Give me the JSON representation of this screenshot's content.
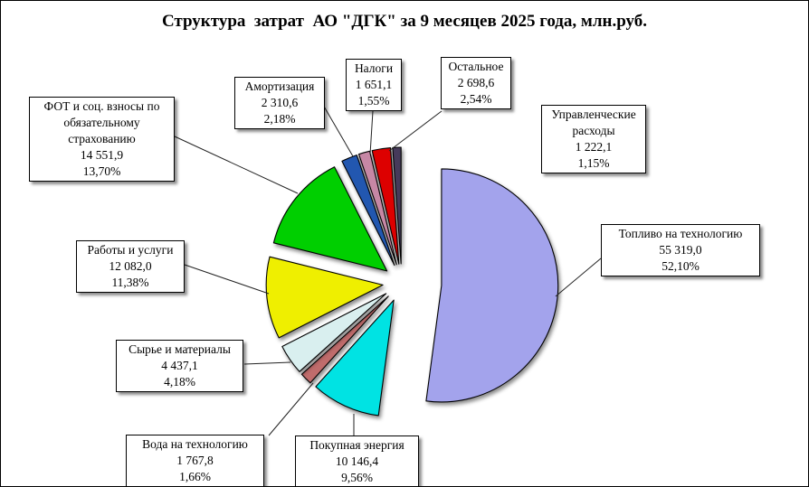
{
  "title": "Структура  затрат  АО \"ДГК\" за 9 месяцев 2025 года, млн.руб.",
  "chart_data": {
    "type": "pie",
    "title": "Структура  затрат  АО \"ДГК\" за 9 месяцев 2025 года, млн.руб.",
    "unit": "млн.руб.",
    "legend_position": "none",
    "exploded": true,
    "start_angle_deg": 0,
    "direction": "clockwise",
    "categories": [
      "Топливо на технологию",
      "Покупная  энергия",
      "Вода  на технологию",
      "Сырье и материалы",
      "Работы и услуги",
      "ФОТ и соц. взносы по обязательному страхованию",
      "Амортизация",
      "Налоги",
      "Остальное",
      "Управленческие расходы"
    ],
    "values": [
      55319.0,
      10146.4,
      1767.8,
      4437.1,
      12082.0,
      14551.9,
      2310.6,
      1651.1,
      2698.6,
      1222.1
    ],
    "percents": [
      52.1,
      9.56,
      1.66,
      4.18,
      11.38,
      13.7,
      2.18,
      1.55,
      2.54,
      1.15
    ],
    "slices": [
      {
        "label": "Топливо на технологию",
        "value": "55 319,0",
        "percent": "52,10%",
        "value_num": 55319.0,
        "percent_num": 52.1,
        "color": "#A3A3EC"
      },
      {
        "label": "Покупная  энергия",
        "value": "10 146,4",
        "percent": "9,56%",
        "value_num": 10146.4,
        "percent_num": 9.56,
        "color": "#00E3E3"
      },
      {
        "label": "Вода  на технологию",
        "value": "1 767,8",
        "percent": "1,66%",
        "value_num": 1767.8,
        "percent_num": 1.66,
        "color": "#C06C6C"
      },
      {
        "label": "Сырье и материалы",
        "value": "4 437,1",
        "percent": "4,18%",
        "value_num": 4437.1,
        "percent_num": 4.18,
        "color": "#D9EFEF"
      },
      {
        "label": "Работы и услуги",
        "value": "12 082,0",
        "percent": "11,38%",
        "value_num": 12082.0,
        "percent_num": 11.38,
        "color": "#EFEF00"
      },
      {
        "label": "ФОТ и соц. взносы по обязательному страхованию",
        "value": "14 551,9",
        "percent": "13,70%",
        "value_num": 14551.9,
        "percent_num": 13.7,
        "color": "#00CF00"
      },
      {
        "label": "Амортизация",
        "value": "2 310,6",
        "percent": "2,18%",
        "value_num": 2310.6,
        "percent_num": 2.18,
        "color": "#2257B0"
      },
      {
        "label": "Налоги",
        "value": "1 651,1",
        "percent": "1,55%",
        "value_num": 1651.1,
        "percent_num": 1.55,
        "color": "#C687A5"
      },
      {
        "label": "Остальное",
        "value": "2 698,6",
        "percent": "2,54%",
        "value_num": 2698.6,
        "percent_num": 2.54,
        "color": "#DD0000"
      },
      {
        "label": "Управленческие расходы",
        "value": "1 222,1",
        "percent": "1,15%",
        "value_num": 1222.1,
        "percent_num": 1.15,
        "color": "#463A5A"
      }
    ]
  }
}
